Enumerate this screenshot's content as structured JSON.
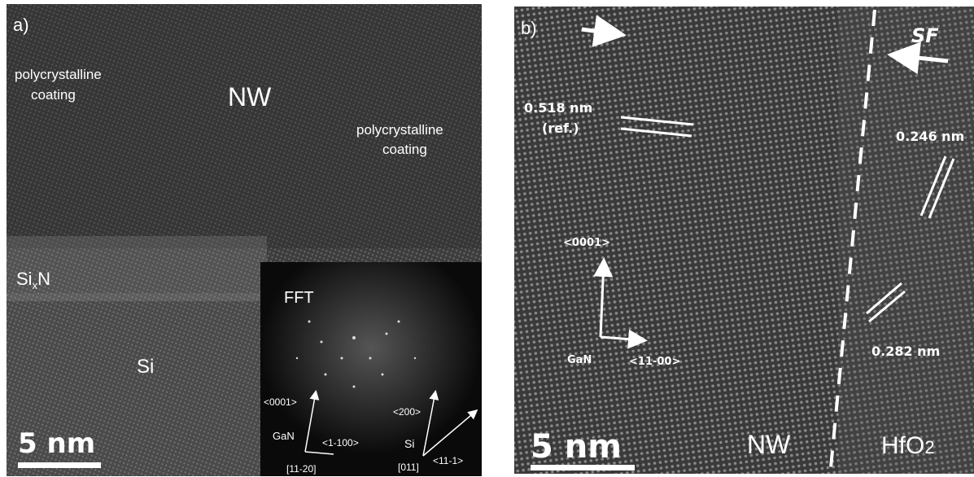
{
  "panel_a": {
    "label": "a)",
    "coating_left": [
      "polycrystalline",
      "coating"
    ],
    "nw": "NW",
    "coating_right": [
      "polycrystalline",
      "coating"
    ],
    "sixn": {
      "main": "Si",
      "sub": "x",
      "tail": "N"
    },
    "si": "Si",
    "scale_bar": "5 nm",
    "fft": {
      "title": "FFT",
      "gan_dir": "<0001>",
      "gan": "GaN",
      "gan_perp": "<1-100>",
      "gan_zone": "[11-20]",
      "si_dir": "<200>",
      "si": "Si",
      "si_zone": "[011]",
      "si_perp": "<11-1>"
    }
  },
  "panel_b": {
    "label": "b)",
    "sf": "SF",
    "spacing_ref": "0.518 nm",
    "ref": "(ref.)",
    "spacing_1": "0.246 nm",
    "dir_up": "<0001>",
    "gan": "GaN",
    "dir_right": "<11-00>",
    "spacing_2": "0.282 nm",
    "nw": "NW",
    "hfo": {
      "main": "HfO",
      "sub": "2"
    },
    "scale_bar": "5 nm"
  }
}
